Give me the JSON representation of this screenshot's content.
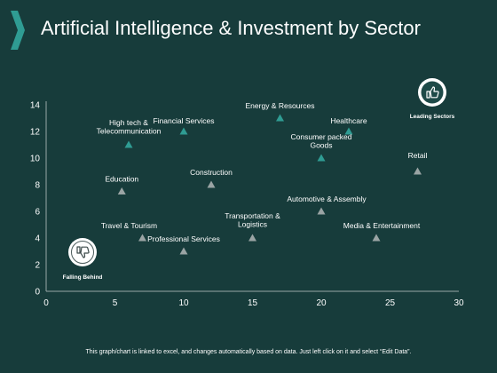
{
  "slide": {
    "title": "Artificial Intelligence & Investment by Sector",
    "footer": "This graph/chart is linked to excel, and changes automatically based on data. Just left click on it and select “Edit Data”."
  },
  "colors": {
    "background": "#173c3b",
    "accent": "#2f9c93",
    "neutral_marker": "#9aa4a4",
    "axis": "#9aa7a7",
    "text": "#ffffff"
  },
  "chart_data": {
    "type": "scatter",
    "title": "",
    "xlabel": "",
    "ylabel": "",
    "xlim": [
      0,
      30
    ],
    "ylim": [
      0,
      14
    ],
    "xticks": [
      0,
      5,
      10,
      15,
      20,
      25,
      30
    ],
    "yticks": [
      0,
      2,
      4,
      6,
      8,
      10,
      12,
      14
    ],
    "grid": false,
    "marker": "triangle",
    "points": [
      {
        "label": "High tech &\nTelecommunication",
        "x": 6,
        "y": 11,
        "highlight": true
      },
      {
        "label": "Financial Services",
        "x": 10,
        "y": 12,
        "highlight": true
      },
      {
        "label": "Energy & Resources",
        "x": 17,
        "y": 13,
        "highlight": true
      },
      {
        "label": "Healthcare",
        "x": 22,
        "y": 12,
        "highlight": true
      },
      {
        "label": "Consumer packed\nGoods",
        "x": 20,
        "y": 10,
        "highlight": true
      },
      {
        "label": "Retail",
        "x": 27,
        "y": 9,
        "highlight": false
      },
      {
        "label": "Education",
        "x": 5.5,
        "y": 7.5,
        "highlight": false
      },
      {
        "label": "Construction",
        "x": 12,
        "y": 8,
        "highlight": false
      },
      {
        "label": "Automotive & Assembly",
        "x": 20,
        "y": 6,
        "highlight": false
      },
      {
        "label": "Transportation &\nLogistics",
        "x": 15,
        "y": 4,
        "highlight": false
      },
      {
        "label": "Media & Entertainment",
        "x": 24,
        "y": 4,
        "highlight": false
      },
      {
        "label": "Travel & Tourism",
        "x": 7,
        "y": 4,
        "highlight": false
      },
      {
        "label": "Professional Services",
        "x": 10,
        "y": 3,
        "highlight": false
      }
    ],
    "annotations": [
      {
        "label": "Leading Sectors",
        "icon": "thumbs-up-icon"
      },
      {
        "label": "Falling Behind",
        "icon": "thumbs-down-icon"
      }
    ]
  }
}
